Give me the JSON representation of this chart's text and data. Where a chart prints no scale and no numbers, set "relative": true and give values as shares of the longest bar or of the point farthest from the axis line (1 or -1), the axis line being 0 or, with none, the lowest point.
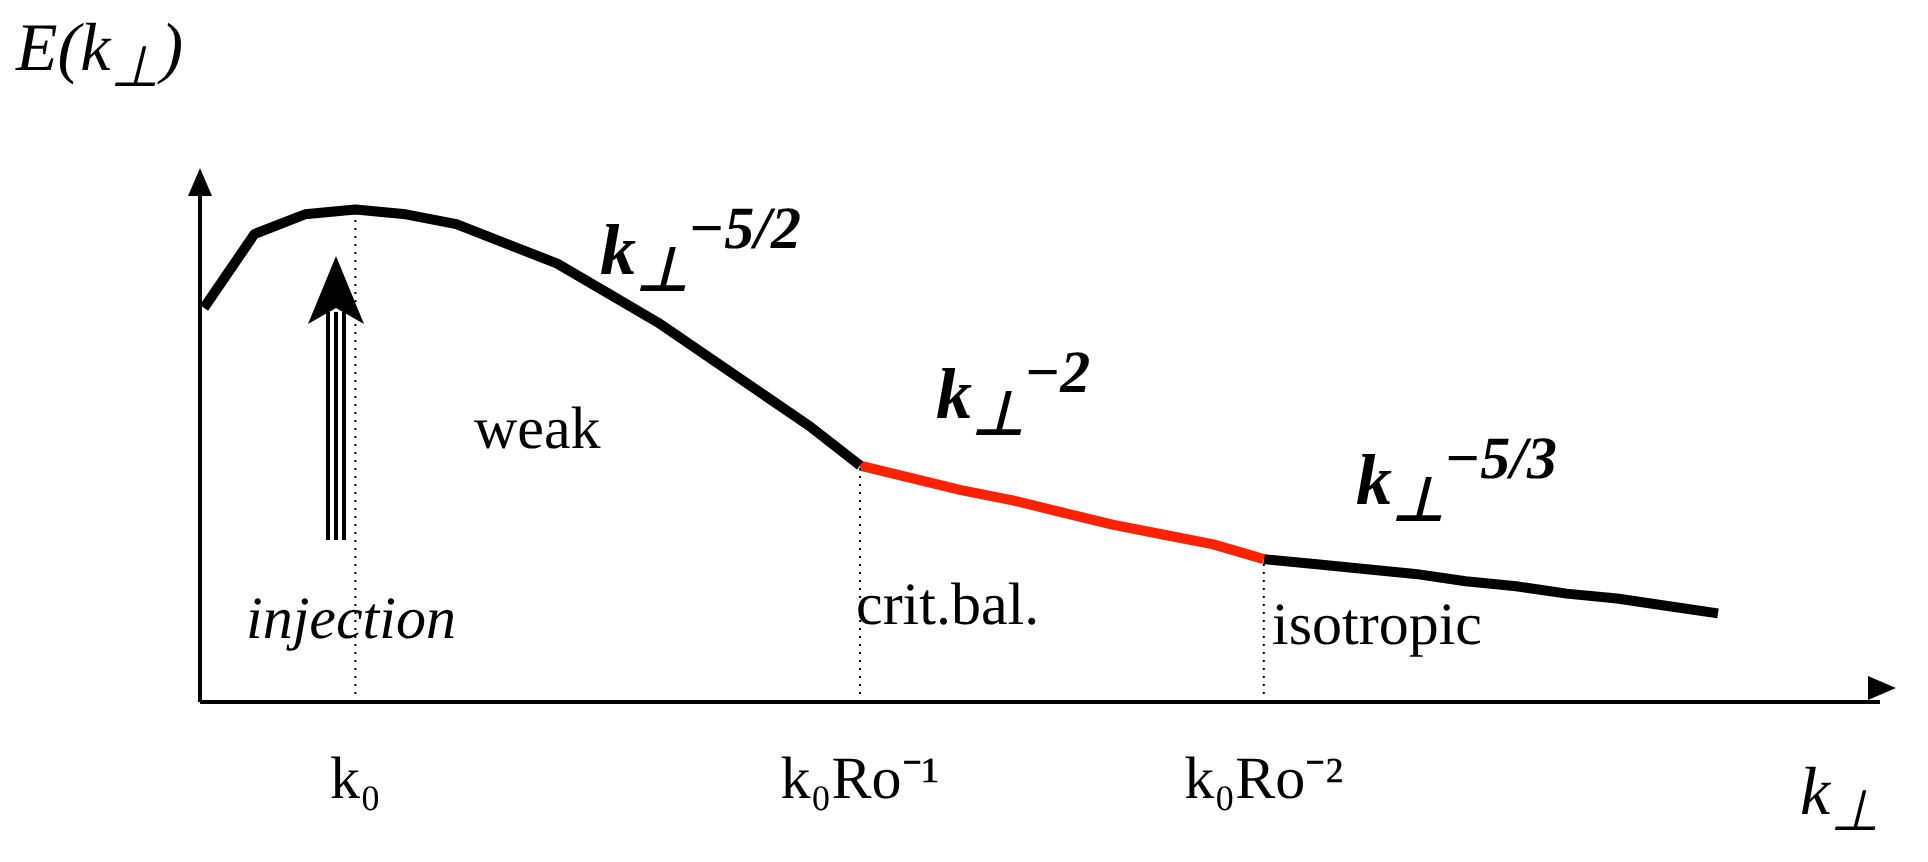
{
  "chart_data": {
    "type": "line",
    "relative": true,
    "ylabel": "E(k$_{⊥}$)",
    "xlabel": "k$_{⊥}$",
    "categories": [
      null,
      null,
      null,
      "k₀",
      null,
      null,
      null,
      null,
      null,
      null,
      null,
      null,
      null,
      "k₀Ro⁻¹",
      null,
      null,
      null,
      null,
      null,
      null,
      null,
      "k₀Ro⁻²",
      null,
      null,
      null,
      null,
      null,
      null,
      null,
      null,
      null
    ],
    "series": [
      {
        "color": "#000000",
        "values": [
          0.8,
          0.95,
          0.99,
          1.0,
          0.99,
          0.97,
          0.93,
          0.89,
          0.83,
          0.77,
          0.7,
          0.63,
          0.56,
          0.48,
          null,
          null,
          null,
          null,
          null,
          null,
          null,
          null,
          null,
          null,
          null,
          null,
          null,
          null,
          null,
          null,
          null
        ]
      },
      {
        "color": "#ff2200",
        "values": [
          null,
          null,
          null,
          null,
          null,
          null,
          null,
          null,
          null,
          null,
          null,
          null,
          null,
          0.48,
          0.455,
          0.43,
          0.41,
          0.385,
          0.36,
          0.34,
          0.32,
          0.29,
          null,
          null,
          null,
          null,
          null,
          null,
          null,
          null,
          null
        ]
      },
      {
        "color": "#000000",
        "values": [
          null,
          null,
          null,
          null,
          null,
          null,
          null,
          null,
          null,
          null,
          null,
          null,
          null,
          null,
          null,
          null,
          null,
          null,
          null,
          null,
          null,
          0.29,
          0.28,
          0.27,
          0.26,
          0.245,
          0.235,
          0.22,
          0.21,
          0.195,
          0.18
        ]
      }
    ],
    "annotations": [
      "k$_{⊥}$$^{−5/2}$",
      "weak",
      "k$_{⊥}$$^{−2}$",
      "crit.bal.",
      "k$_{⊥}$$^{−5/3}$",
      "isotropic",
      "injection"
    ],
    "grid": "x",
    "marker": "none",
    "line_style": "solid"
  }
}
